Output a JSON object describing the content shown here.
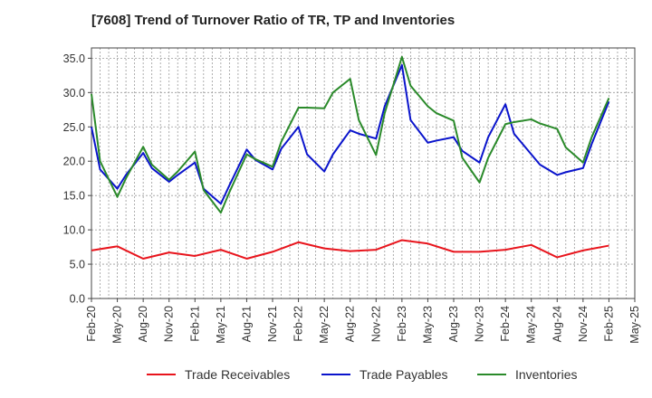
{
  "chart_data": {
    "type": "line",
    "title": "[7608]  Trend of Turnover Ratio of TR, TP and Inventories",
    "xlabel": "",
    "ylabel": "",
    "ylim": [
      0,
      36.5
    ],
    "yticks": [
      0.0,
      5.0,
      10.0,
      15.0,
      20.0,
      25.0,
      30.0,
      35.0
    ],
    "ytick_labels": [
      "0.0",
      "5.0",
      "10.0",
      "15.0",
      "20.0",
      "25.0",
      "30.0",
      "35.0"
    ],
    "xtick_labels": [
      "Feb-20",
      "May-20",
      "Aug-20",
      "Nov-20",
      "Feb-21",
      "May-21",
      "Aug-21",
      "Nov-21",
      "Feb-22",
      "May-22",
      "Aug-22",
      "Nov-22",
      "Feb-23",
      "May-23",
      "Aug-23",
      "Nov-23",
      "Feb-24",
      "May-24",
      "Aug-24",
      "Nov-24",
      "Feb-25",
      "May-25"
    ],
    "grid": true,
    "legend_position": "bottom",
    "x": [
      "Feb-20",
      "Mar-20",
      "May-20",
      "Jun-20",
      "Aug-20",
      "Sep-20",
      "Nov-20",
      "Dec-20",
      "Feb-21",
      "Mar-21",
      "May-21",
      "Jun-21",
      "Aug-21",
      "Sep-21",
      "Nov-21",
      "Dec-21",
      "Feb-22",
      "Mar-22",
      "May-22",
      "Jun-22",
      "Aug-22",
      "Sep-22",
      "Nov-22",
      "Dec-22",
      "Feb-23",
      "Mar-23",
      "May-23",
      "Jun-23",
      "Aug-23",
      "Sep-23",
      "Nov-23",
      "Dec-23",
      "Feb-24",
      "Mar-24",
      "May-24",
      "Jun-24",
      "Aug-24",
      "Sep-24",
      "Nov-24",
      "Dec-24",
      "Feb-25"
    ],
    "series": [
      {
        "name": "Trade Receivables",
        "color": "#e8141c",
        "values": [
          7.0,
          null,
          7.6,
          null,
          5.8,
          null,
          6.7,
          null,
          6.2,
          null,
          7.1,
          null,
          5.8,
          null,
          6.8,
          null,
          8.2,
          null,
          7.3,
          null,
          6.9,
          null,
          7.1,
          null,
          8.5,
          null,
          8.0,
          null,
          6.8,
          null,
          6.8,
          null,
          7.1,
          null,
          7.8,
          null,
          6.0,
          null,
          7.0,
          null,
          7.7
        ]
      },
      {
        "name": "Trade Payables",
        "color": "#0a14cc",
        "values": [
          25.0,
          18.8,
          16.0,
          18.0,
          21.2,
          19.0,
          17.0,
          18.0,
          19.8,
          16.0,
          13.8,
          16.5,
          21.7,
          20.2,
          18.8,
          21.8,
          25.0,
          21.0,
          18.5,
          21.0,
          24.5,
          24.0,
          23.3,
          28.0,
          34.0,
          26.0,
          22.7,
          23.0,
          23.5,
          21.5,
          19.8,
          23.5,
          28.3,
          24.0,
          21.0,
          19.5,
          18.0,
          18.4,
          19.0,
          22.5,
          28.7
        ]
      },
      {
        "name": "Inventories",
        "color": "#2a8a2a",
        "values": [
          29.8,
          20.0,
          14.8,
          17.5,
          22.1,
          19.5,
          17.3,
          18.5,
          21.4,
          15.8,
          12.5,
          15.5,
          21.0,
          20.3,
          19.2,
          22.8,
          27.8,
          27.8,
          27.7,
          30.0,
          32.0,
          26.0,
          20.9,
          27.0,
          35.2,
          31.0,
          28.0,
          27.0,
          25.9,
          20.5,
          16.9,
          20.5,
          25.4,
          25.7,
          26.1,
          25.5,
          24.7,
          22.0,
          19.8,
          23.5,
          29.2
        ]
      }
    ]
  }
}
